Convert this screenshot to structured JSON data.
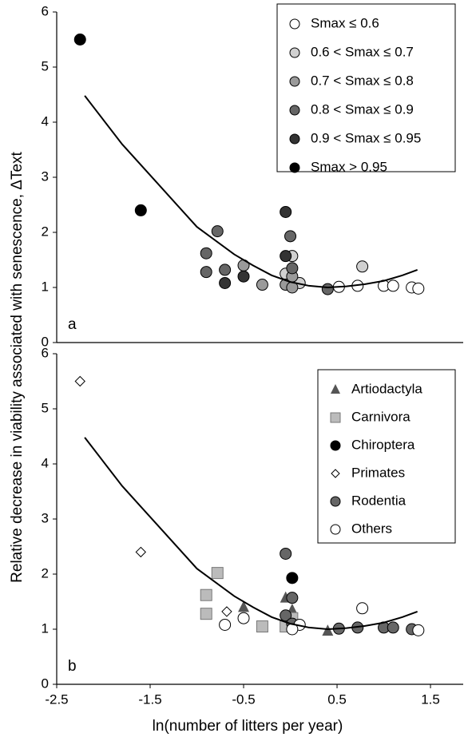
{
  "chart_data": [
    {
      "type": "scatter",
      "panel_label": "a",
      "ylabel": "Relative decrease in viability associated with senescence, ΔText",
      "xlim": [
        -2.5,
        1.85
      ],
      "ylim": [
        0,
        6
      ],
      "yticks": [
        0,
        1,
        2,
        3,
        4,
        5,
        6
      ],
      "legend": "upper right",
      "curve": {
        "color": "#000000",
        "x": [
          -2.2,
          -1.8,
          -1.4,
          -1.0,
          -0.6,
          -0.4,
          -0.2,
          0.0,
          0.2,
          0.4,
          0.6,
          0.8,
          1.0,
          1.2,
          1.36
        ],
        "values": [
          4.48,
          3.6,
          2.85,
          2.1,
          1.6,
          1.4,
          1.22,
          1.1,
          1.03,
          1.0,
          1.02,
          1.06,
          1.12,
          1.22,
          1.32
        ]
      },
      "series": [
        {
          "name": "Smax ≤ 0.6",
          "color": "#ffffff",
          "marker": "circle",
          "x": [
            0.52,
            0.72,
            1.0,
            1.1,
            1.3,
            1.37
          ],
          "values": [
            1.01,
            1.03,
            1.03,
            1.03,
            1.0,
            0.98
          ]
        },
        {
          "name": "0.6 < Smax ≤ 0.7",
          "color": "#d0d0d0",
          "marker": "circle",
          "x": [
            -0.05,
            0.02,
            0.02,
            0.1,
            0.77
          ],
          "values": [
            1.25,
            1.57,
            1.1,
            1.08,
            1.38
          ]
        },
        {
          "name": "0.7 < Smax ≤ 0.8",
          "color": "#9a9a9a",
          "marker": "circle",
          "x": [
            -0.5,
            -0.3,
            -0.05,
            0.02,
            0.02
          ],
          "values": [
            1.4,
            1.05,
            1.05,
            1.2,
            1.0
          ]
        },
        {
          "name": "0.8 < Smax ≤ 0.9",
          "color": "#666666",
          "marker": "circle",
          "x": [
            -0.9,
            -0.9,
            -0.78,
            -0.7,
            0.0,
            0.02,
            0.4
          ],
          "values": [
            1.62,
            1.28,
            2.02,
            1.32,
            1.93,
            1.35,
            0.97
          ]
        },
        {
          "name": "0.9 < Smax ≤ 0.95",
          "color": "#333333",
          "marker": "circle",
          "x": [
            -0.7,
            -0.5,
            -0.05,
            -0.05
          ],
          "values": [
            1.08,
            1.2,
            2.37,
            1.57
          ]
        },
        {
          "name": "Smax > 0.95",
          "color": "#000000",
          "marker": "circle",
          "x": [
            -2.25,
            -1.6
          ],
          "values": [
            5.5,
            2.4
          ]
        }
      ]
    },
    {
      "type": "scatter",
      "panel_label": "b",
      "xlabel": "ln(number of litters per year)",
      "xlim": [
        -2.5,
        1.85
      ],
      "xticks": [
        -2.5,
        -1.5,
        -0.5,
        0.5,
        1.5
      ],
      "ylim": [
        0,
        6
      ],
      "yticks": [
        0,
        1,
        2,
        3,
        4,
        5,
        6
      ],
      "legend": "upper right",
      "curve": {
        "color": "#000000",
        "x": [
          -2.2,
          -1.8,
          -1.4,
          -1.0,
          -0.6,
          -0.4,
          -0.2,
          0.0,
          0.2,
          0.4,
          0.6,
          0.8,
          1.0,
          1.2,
          1.36
        ],
        "values": [
          4.48,
          3.6,
          2.85,
          2.1,
          1.6,
          1.4,
          1.22,
          1.1,
          1.03,
          1.0,
          1.02,
          1.06,
          1.12,
          1.22,
          1.32
        ]
      },
      "series": [
        {
          "name": "Artiodactyla",
          "color": "#555555",
          "marker": "triangle",
          "x": [
            -0.5,
            -0.05,
            0.02,
            0.4
          ],
          "values": [
            1.4,
            1.57,
            1.35,
            0.97
          ]
        },
        {
          "name": "Carnivora",
          "color": "#bbbbbb",
          "marker": "square",
          "x": [
            -0.78,
            -0.9,
            -0.9,
            -0.3,
            -0.05,
            0.02
          ],
          "values": [
            2.02,
            1.62,
            1.28,
            1.05,
            1.05,
            1.2
          ]
        },
        {
          "name": "Chiroptera",
          "color": "#000000",
          "marker": "circle",
          "x": [
            0.02
          ],
          "values": [
            1.93
          ]
        },
        {
          "name": "Primates",
          "color": "#ffffff",
          "marker": "diamond",
          "x": [
            -2.25,
            -1.6,
            -0.68
          ],
          "values": [
            5.5,
            2.4,
            1.32
          ]
        },
        {
          "name": "Rodentia",
          "color": "#666666",
          "marker": "circle",
          "x": [
            -0.05,
            -0.05,
            0.02,
            0.02,
            0.52,
            0.72,
            1.0,
            1.1,
            1.3
          ],
          "values": [
            2.37,
            1.25,
            1.57,
            1.1,
            1.01,
            1.03,
            1.03,
            1.03,
            1.0
          ]
        },
        {
          "name": "Others",
          "color": "#ffffff",
          "marker": "circle",
          "x": [
            -0.7,
            -0.5,
            0.1,
            0.77,
            1.37,
            0.02
          ],
          "values": [
            1.08,
            1.2,
            1.08,
            1.38,
            0.98,
            1.0
          ]
        }
      ]
    }
  ]
}
